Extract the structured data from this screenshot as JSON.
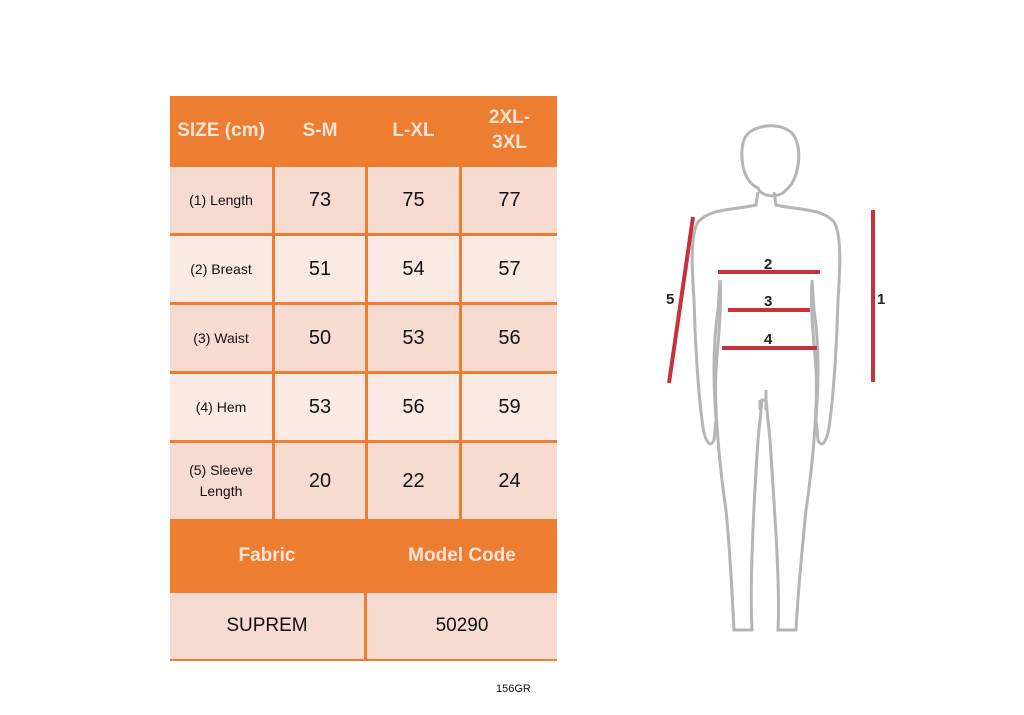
{
  "table": {
    "headers": [
      "SIZE (cm)",
      "S-M",
      "L-XL",
      "2XL-3XL"
    ],
    "rows": [
      {
        "label": "(1) Length",
        "values": [
          "73",
          "75",
          "77"
        ]
      },
      {
        "label": "(2) Breast",
        "values": [
          "51",
          "54",
          "57"
        ]
      },
      {
        "label": "(3) Waist",
        "values": [
          "50",
          "53",
          "56"
        ]
      },
      {
        "label": "(4) Hem",
        "values": [
          "53",
          "56",
          "59"
        ]
      },
      {
        "label": "(5) Sleeve Length",
        "values": [
          "20",
          "22",
          "24"
        ]
      }
    ],
    "footer_headers": [
      "Fabric",
      "Model Code"
    ],
    "footer_values": [
      "SUPREM",
      "50290"
    ]
  },
  "figure": {
    "labels": [
      "1",
      "2",
      "3",
      "4",
      "5"
    ]
  },
  "product_code": "156GR",
  "colors": {
    "header": "#ed7d31",
    "cell_dark": "#f8dbd0",
    "cell_light": "#fbeae4",
    "measure_line": "#c8313a",
    "outline": "#b5b5b5"
  }
}
